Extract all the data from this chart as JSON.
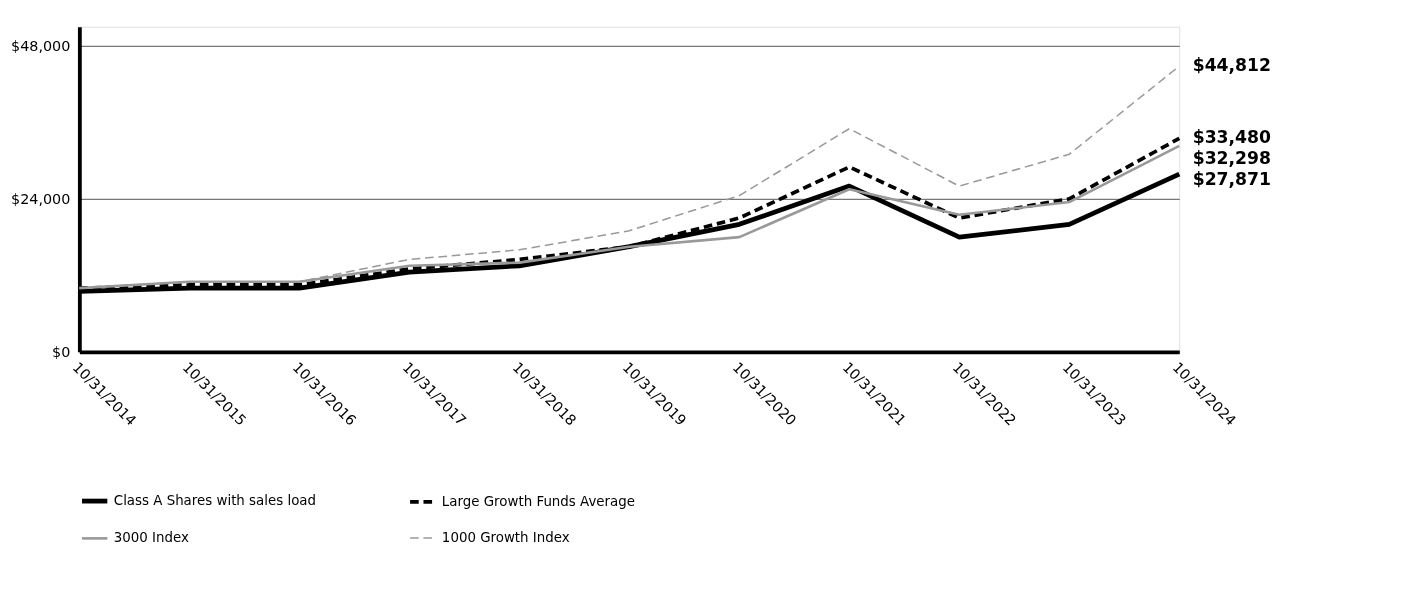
{
  "chart_data": {
    "type": "line",
    "categories": [
      "10/31/2014",
      "10/31/2015",
      "10/31/2016",
      "10/31/2017",
      "10/31/2018",
      "10/31/2019",
      "10/31/2020",
      "10/31/2021",
      "10/31/2022",
      "10/31/2023",
      "10/31/2024"
    ],
    "series": [
      {
        "name": "Class A Shares with sales load",
        "color": "#000000",
        "line_style": "solid",
        "values": [
          9500,
          10000,
          10000,
          12500,
          13500,
          16500,
          20000,
          26000,
          18000,
          20000,
          27871
        ],
        "value_labels": [
          null,
          null,
          null,
          null,
          null,
          null,
          null,
          null,
          null,
          null,
          "$27,871"
        ]
      },
      {
        "name": "Large Growth Funds Average",
        "color": "#000000",
        "line_style": "dashed",
        "values": [
          10000,
          10500,
          10500,
          13000,
          14500,
          16500,
          21000,
          29000,
          21000,
          24000,
          33480
        ],
        "value_labels": [
          null,
          null,
          null,
          null,
          null,
          null,
          null,
          null,
          null,
          null,
          "$33,480"
        ]
      },
      {
        "name": "3000 Index",
        "color": "#999999",
        "line_style": "solid",
        "values": [
          10000,
          11000,
          11000,
          13500,
          14000,
          16500,
          18000,
          25500,
          21500,
          23500,
          32298
        ],
        "value_labels": [
          null,
          null,
          null,
          null,
          null,
          null,
          null,
          null,
          null,
          null,
          "$32,298"
        ]
      },
      {
        "name": "1000 Growth Index",
        "color": "#999999",
        "line_style": "dashed",
        "values": [
          10000,
          11000,
          11000,
          14500,
          16000,
          19000,
          24500,
          35000,
          26000,
          31000,
          44812
        ],
        "value_labels": [
          null,
          null,
          null,
          null,
          null,
          null,
          null,
          null,
          null,
          null,
          "$44,812"
        ]
      }
    ],
    "ylim": [
      0,
      51000
    ],
    "yticks": [
      {
        "value": 0,
        "label": "$0"
      },
      {
        "value": 24000,
        "label": "$24,000"
      },
      {
        "value": 48000,
        "label": "$48,000"
      }
    ],
    "grid": "y",
    "legend": "bottom",
    "marker": "none"
  }
}
